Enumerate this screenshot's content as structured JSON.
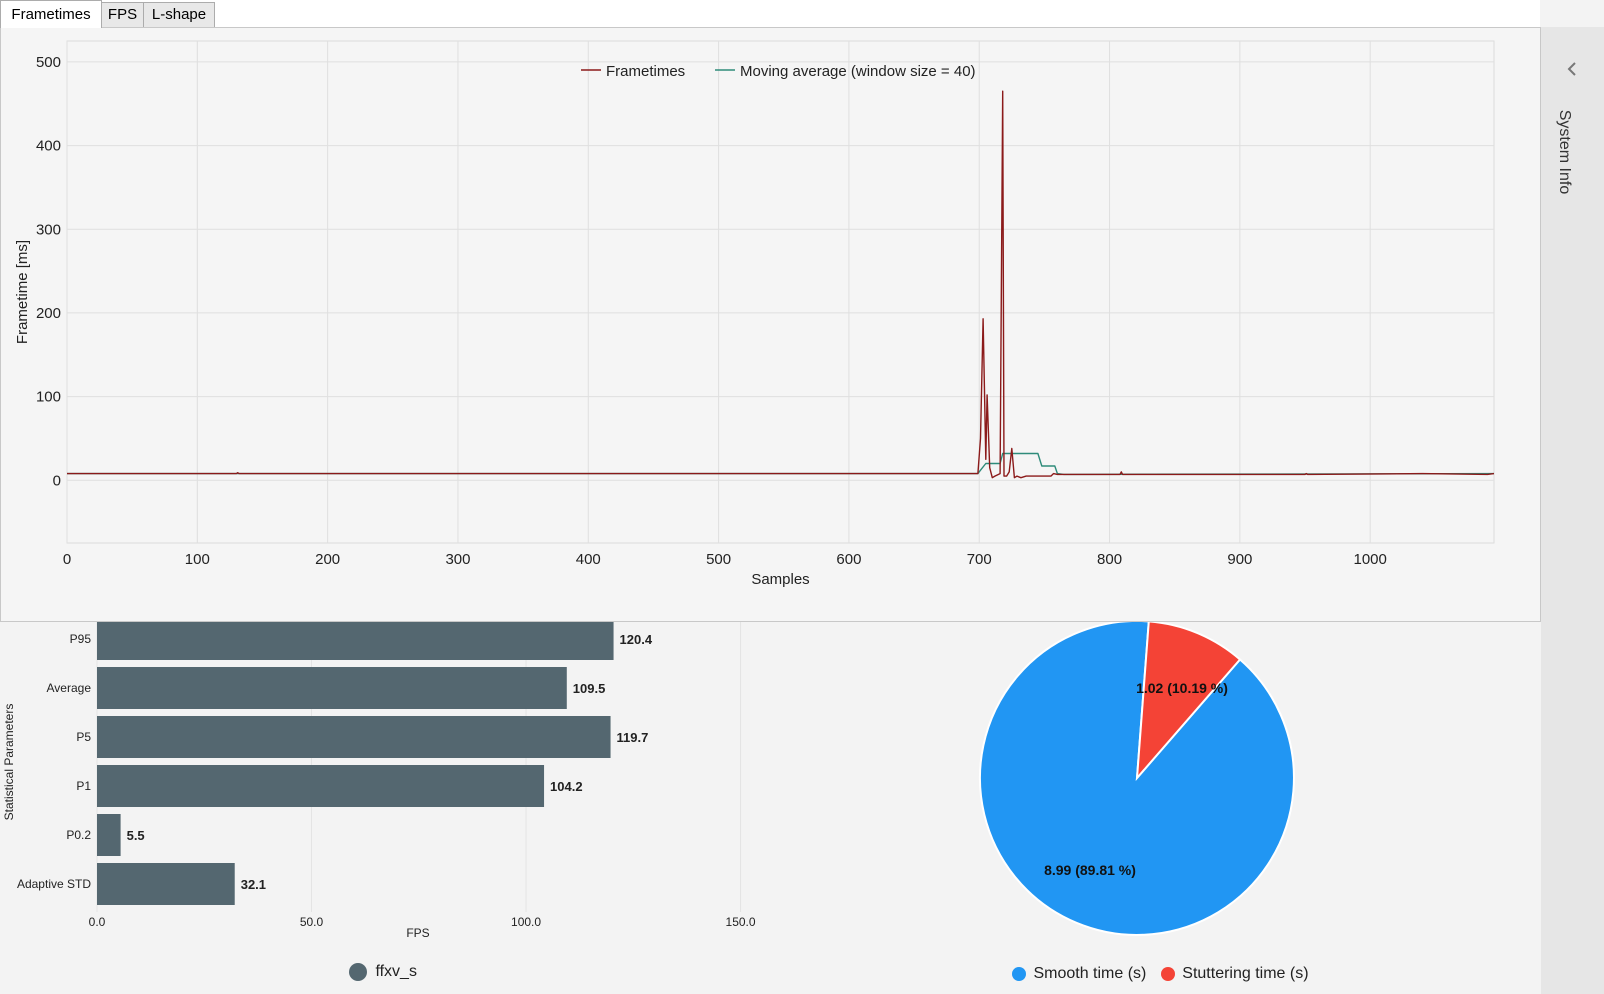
{
  "tabs": [
    {
      "label": "Frametimes",
      "active": true
    },
    {
      "label": "FPS",
      "active": false
    },
    {
      "label": "L-shape",
      "active": false
    }
  ],
  "sidebar": {
    "label": "System Info",
    "icon": "chevron-left-icon"
  },
  "colors": {
    "frametimes": "#8b1a1a",
    "moving_average": "#2e8b7a",
    "bar": "#546770",
    "smooth": "#2196f3",
    "stutter": "#f44336"
  },
  "chart_data": [
    {
      "type": "line",
      "title": "",
      "xlabel": "Samples",
      "ylabel": "Frametime [ms]",
      "xlim": [
        0,
        1095
      ],
      "ylim": [
        -75,
        525
      ],
      "xticks": [
        0,
        100,
        200,
        300,
        400,
        500,
        600,
        700,
        800,
        900,
        1000
      ],
      "yticks": [
        0,
        100,
        200,
        300,
        400,
        500
      ],
      "legend": [
        "Frametimes",
        "Moving average (window size = 40)"
      ],
      "series": [
        {
          "name": "Frametimes",
          "x": [
            0,
            130,
            131,
            132,
            500,
            699,
            701,
            703,
            705,
            706,
            708,
            710,
            712,
            716,
            718,
            719,
            721,
            723,
            725,
            727,
            729,
            732,
            736,
            745,
            755,
            757,
            760,
            765,
            808,
            809,
            810,
            950,
            951,
            952,
            1040,
            1090,
            1095
          ],
          "y": [
            8,
            8,
            9,
            8,
            8,
            8,
            50,
            193,
            25,
            102,
            15,
            3,
            5,
            8,
            465,
            5,
            5,
            10,
            38,
            3,
            5,
            3,
            5,
            5,
            5,
            8,
            7,
            7,
            7,
            10,
            7,
            7,
            8,
            7,
            8,
            7,
            8
          ]
        },
        {
          "name": "Moving average (window size = 40)",
          "x": [
            0,
            699,
            701,
            705,
            716,
            718,
            745,
            748,
            758,
            760,
            765,
            1095
          ],
          "y": [
            8,
            8,
            12,
            20,
            20,
            32,
            32,
            17,
            17,
            8,
            7,
            8
          ]
        }
      ]
    },
    {
      "type": "bar",
      "orientation": "horizontal",
      "categories": [
        "P95",
        "Average",
        "P5",
        "P1",
        "P0.2",
        "Adaptive STD"
      ],
      "values": [
        120.4,
        109.5,
        119.7,
        104.2,
        5.5,
        32.1
      ],
      "value_labels": [
        "120.4",
        "109.5",
        "119.7",
        "104.2",
        "5.5",
        "32.1"
      ],
      "xlabel": "FPS",
      "ylabel": "Statistical Parameters",
      "xlim": [
        0,
        155
      ],
      "xticks": [
        "0.0",
        "50.0",
        "100.0",
        "150.0"
      ],
      "legend": [
        "ffxv_s"
      ]
    },
    {
      "type": "pie",
      "labels": [
        "Smooth time (s)",
        "Stuttering time (s)"
      ],
      "values": [
        8.99,
        1.02
      ],
      "data_labels": [
        "8.99 (89.81 %)",
        "1.02 (10.19 %)"
      ]
    }
  ]
}
